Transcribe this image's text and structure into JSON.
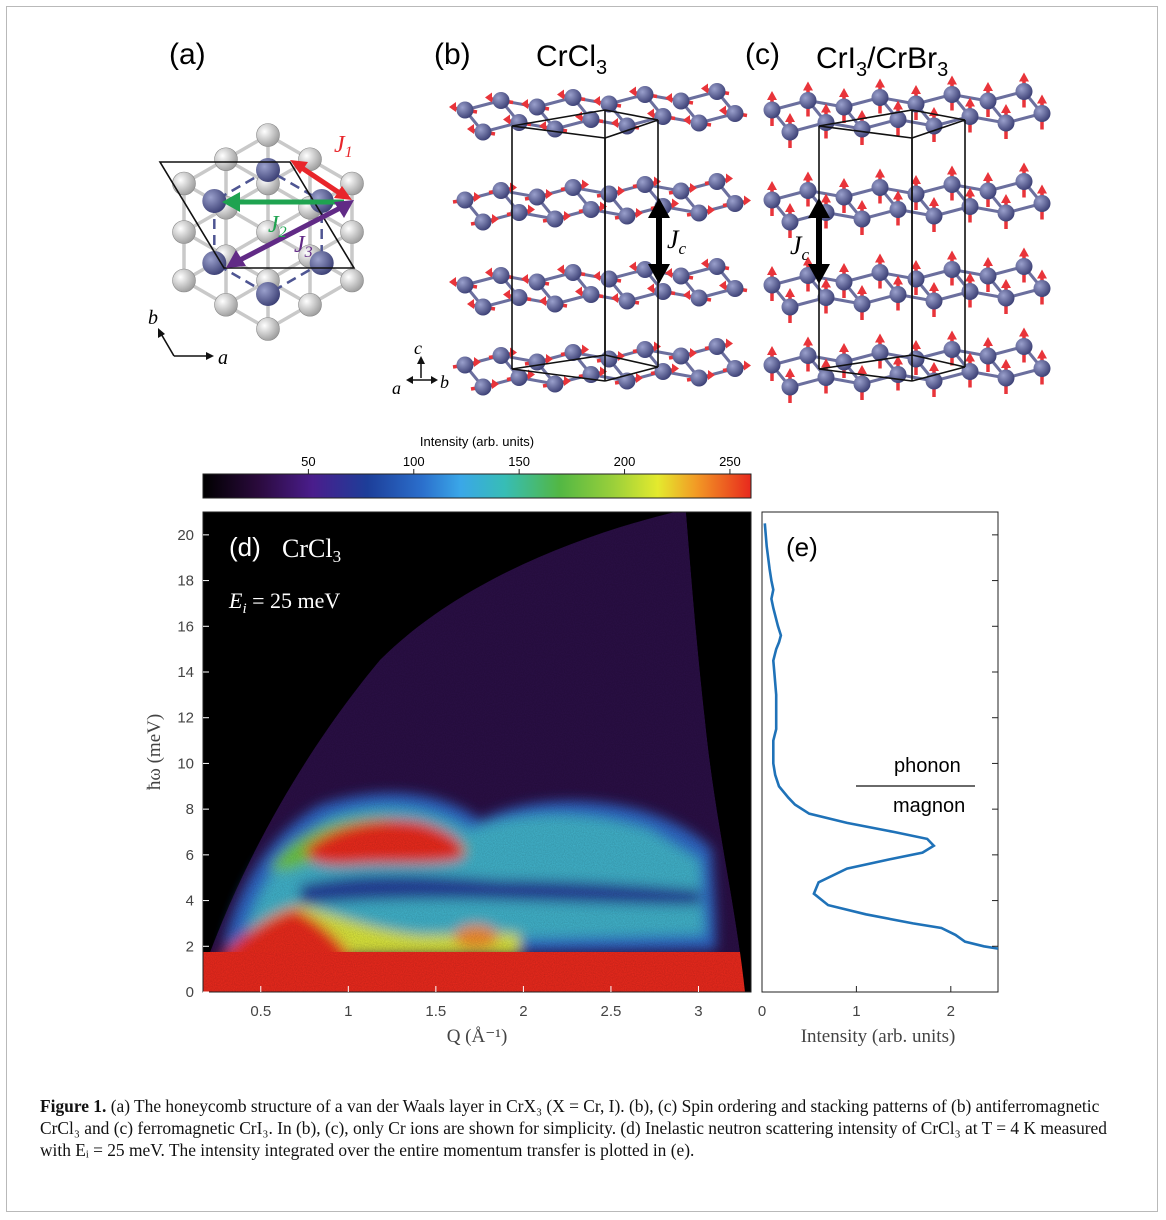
{
  "panels": {
    "a": {
      "label": "(a)",
      "j1": "J",
      "j1_sub": "1",
      "j2": "J",
      "j2_sub": "2",
      "j3": "J",
      "j3_sub": "3",
      "axis_a": "a",
      "axis_b": "b"
    },
    "b": {
      "label": "(b)",
      "title_main": "CrCl",
      "title_sub": "3",
      "jc": "J",
      "jc_sub": "c",
      "axis_a": "a",
      "axis_b": "b",
      "axis_c": "c"
    },
    "c": {
      "label": "(c)",
      "title_main": "CrI",
      "title_sub1": "3",
      "title_mid": "/CrBr",
      "title_sub2": "3",
      "jc": "J",
      "jc_sub": "c"
    },
    "d": {
      "label": "(d)",
      "material_main": "CrCl",
      "material_sub": "3",
      "ei_label": "E",
      "ei_sub": "i",
      "ei_value": " = 25 meV"
    },
    "e": {
      "label": "(e)",
      "phonon": "phonon",
      "magnon": "magnon"
    }
  },
  "colorbar": {
    "title": "Intensity (arb. units)",
    "ticks": [
      "50",
      "100",
      "150",
      "200",
      "250"
    ],
    "tick_values": [
      50,
      100,
      150,
      200,
      250
    ],
    "range": [
      0,
      260
    ]
  },
  "chart_data": [
    {
      "type": "heatmap",
      "xlabel": "Q (Å⁻¹)",
      "ylabel": "ħω (meV)",
      "xlim": [
        0.17,
        3.3
      ],
      "ylim": [
        0,
        21
      ],
      "xticks": [
        "0.5",
        "1",
        "1.5",
        "2",
        "2.5",
        "3"
      ],
      "xtick_values": [
        0.5,
        1,
        1.5,
        2,
        2.5,
        3
      ],
      "yticks": [
        "0",
        "2",
        "4",
        "6",
        "8",
        "10",
        "12",
        "14",
        "16",
        "18",
        "20"
      ],
      "ytick_values": [
        0,
        2,
        4,
        6,
        8,
        10,
        12,
        14,
        16,
        18,
        20
      ]
    },
    {
      "type": "line",
      "xlabel": "Intensity (arb. units)",
      "xlim": [
        0,
        2.5
      ],
      "ylim": [
        0,
        21
      ],
      "xticks": [
        "0",
        "1",
        "2"
      ],
      "xtick_values": [
        0,
        1,
        2
      ],
      "series": [
        {
          "x": [
            2.5,
            2.35,
            2.15,
            2.05,
            1.9,
            1.6,
            1.1,
            0.7,
            0.55,
            0.6,
            0.9,
            1.35,
            1.7,
            1.82,
            1.75,
            1.4,
            0.9,
            0.5,
            0.35,
            0.28,
            0.18,
            0.14,
            0.12,
            0.12,
            0.15,
            0.15,
            0.15,
            0.13,
            0.12,
            0.15,
            0.18,
            0.2,
            0.17,
            0.12,
            0.1,
            0.12,
            0.1,
            0.08,
            0.05,
            0.03
          ],
          "y": [
            1.9,
            2.0,
            2.2,
            2.5,
            2.8,
            3.0,
            3.4,
            3.8,
            4.3,
            4.8,
            5.4,
            5.8,
            6.1,
            6.4,
            6.7,
            7.0,
            7.4,
            7.8,
            8.2,
            8.5,
            9.0,
            9.5,
            10,
            11,
            11.5,
            12,
            13,
            14,
            14.5,
            15,
            15.3,
            15.6,
            16,
            16.8,
            17.2,
            17.6,
            18,
            18.5,
            19.5,
            20.5
          ]
        }
      ]
    }
  ],
  "caption": {
    "lead": "Figure 1.",
    "text": " (a) The honeycomb structure of a van der Waals layer in CrX₃ (X = Cr, I). (b), (c) Spin ordering and stacking patterns of (b) antiferromagnetic CrCl₃ and (c) ferromagnetic CrI₃. In (b), (c), only Cr ions are shown for simplicity. (d) Inelastic neutron scattering intensity of CrCl₃ at T = 4 K measured with Eᵢ = 25 meV. The intensity integrated over the entire momentum transfer is plotted in (e)."
  }
}
